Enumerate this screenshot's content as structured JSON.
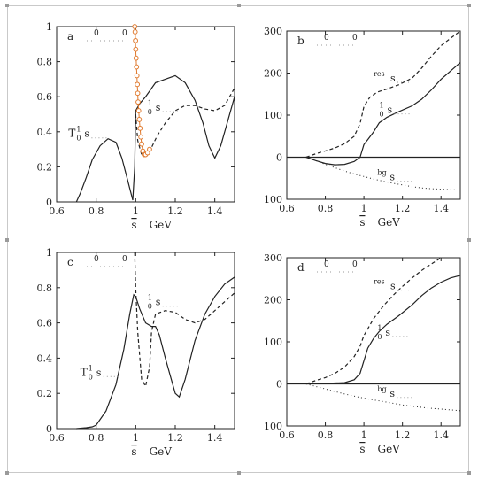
{
  "figure": {
    "corner_color": "#9a9a9a",
    "frame_color": "#c9c9c9"
  },
  "chart_data": [
    {
      "id": "a",
      "type": "line",
      "panel_letter": "a",
      "panel_labels": [
        "0",
        "0"
      ],
      "xlabel_sym": "s",
      "xlabel_unit": "GeV",
      "xlim": [
        0.6,
        1.5
      ],
      "ylim": [
        0,
        1
      ],
      "xticks": [
        0.6,
        0.8,
        1,
        1.2,
        1.4
      ],
      "xtick_labels": [
        "0.6",
        "0.8",
        "1",
        "1.2",
        "1.4"
      ],
      "yticks": [
        0,
        0.2,
        0.4,
        0.6,
        0.8,
        1
      ],
      "ytick_labels": [
        "0",
        "0.2",
        "0.4",
        "0.6",
        "0.8",
        "1"
      ],
      "zero_line": false,
      "curve_labels": [
        {
          "text": "T",
          "sup": "1",
          "sub": "0",
          "tail": "s",
          "x": 0.66,
          "y": 0.37
        },
        {
          "text": "",
          "sup": "1",
          "sub": "0",
          "tail": "s",
          "x": 1.06,
          "y": 0.52
        }
      ],
      "series": [
        {
          "style": "solid",
          "points": [
            [
              0.7,
              0
            ],
            [
              0.72,
              0.05
            ],
            [
              0.75,
              0.14
            ],
            [
              0.78,
              0.24
            ],
            [
              0.82,
              0.32
            ],
            [
              0.86,
              0.36
            ],
            [
              0.9,
              0.34
            ],
            [
              0.93,
              0.25
            ],
            [
              0.96,
              0.12
            ],
            [
              0.985,
              0.01
            ],
            [
              0.995,
              0.2
            ],
            [
              1.0,
              0.52
            ],
            [
              1.02,
              0.56
            ],
            [
              1.05,
              0.6
            ],
            [
              1.1,
              0.68
            ],
            [
              1.15,
              0.7
            ],
            [
              1.2,
              0.72
            ],
            [
              1.25,
              0.68
            ],
            [
              1.3,
              0.58
            ],
            [
              1.34,
              0.45
            ],
            [
              1.37,
              0.32
            ],
            [
              1.4,
              0.25
            ],
            [
              1.43,
              0.32
            ],
            [
              1.46,
              0.44
            ],
            [
              1.5,
              0.6
            ]
          ]
        },
        {
          "style": "dashed",
          "points": [
            [
              1.0,
              0.5
            ],
            [
              1.01,
              0.35
            ],
            [
              1.03,
              0.27
            ],
            [
              1.06,
              0.27
            ],
            [
              1.08,
              0.31
            ],
            [
              1.11,
              0.38
            ],
            [
              1.15,
              0.45
            ],
            [
              1.2,
              0.52
            ],
            [
              1.25,
              0.55
            ],
            [
              1.3,
              0.55
            ],
            [
              1.35,
              0.53
            ],
            [
              1.4,
              0.52
            ],
            [
              1.45,
              0.55
            ],
            [
              1.5,
              0.65
            ]
          ]
        },
        {
          "style": "markers",
          "color": "#e07a2e",
          "points": [
            [
              0.995,
              1
            ],
            [
              0.997,
              0.97
            ],
            [
              0.999,
              0.92
            ],
            [
              1.0,
              0.87
            ],
            [
              1.002,
              0.82
            ],
            [
              1.004,
              0.77
            ],
            [
              1.006,
              0.72
            ],
            [
              1.008,
              0.67
            ],
            [
              1.01,
              0.62
            ],
            [
              1.012,
              0.57
            ],
            [
              1.015,
              0.52
            ],
            [
              1.018,
              0.47
            ],
            [
              1.022,
              0.42
            ],
            [
              1.026,
              0.37
            ],
            [
              1.03,
              0.33
            ],
            [
              1.036,
              0.29
            ],
            [
              1.043,
              0.27
            ],
            [
              1.05,
              0.27
            ],
            [
              1.06,
              0.28
            ],
            [
              1.07,
              0.3
            ]
          ]
        }
      ]
    },
    {
      "id": "b",
      "type": "line",
      "panel_letter": "b",
      "panel_labels": [
        "0",
        "0"
      ],
      "xlabel_sym": "s",
      "xlabel_unit": "GeV",
      "xlim": [
        0.6,
        1.5
      ],
      "ylim": [
        -100,
        300
      ],
      "xticks": [
        0.6,
        0.8,
        1,
        1.2,
        1.4
      ],
      "xtick_labels": [
        "0.6",
        "0.8",
        "1",
        "1.2",
        "1.4"
      ],
      "yticks": [
        -100,
        0,
        100,
        200,
        300
      ],
      "ytick_labels": [
        "100",
        "0",
        "100",
        "200",
        "300"
      ],
      "zero_line": true,
      "curve_labels": [
        {
          "text": "",
          "sup": "res",
          "sub": "",
          "tail": "s",
          "x": 1.05,
          "y": 180
        },
        {
          "text": "",
          "sup": "1",
          "sub": "0",
          "tail": "s",
          "x": 1.08,
          "y": 105
        },
        {
          "text": "",
          "sup": "bg",
          "sub": "",
          "tail": "s",
          "x": 1.07,
          "y": -55
        }
      ],
      "series": [
        {
          "style": "solid",
          "points": [
            [
              0.7,
              0
            ],
            [
              0.75,
              -8
            ],
            [
              0.8,
              -15
            ],
            [
              0.85,
              -18
            ],
            [
              0.9,
              -17
            ],
            [
              0.95,
              -10
            ],
            [
              0.98,
              0
            ],
            [
              1.0,
              30
            ],
            [
              1.02,
              42
            ],
            [
              1.05,
              60
            ],
            [
              1.08,
              82
            ],
            [
              1.12,
              95
            ],
            [
              1.18,
              108
            ],
            [
              1.25,
              122
            ],
            [
              1.3,
              138
            ],
            [
              1.35,
              160
            ],
            [
              1.4,
              185
            ],
            [
              1.45,
              205
            ],
            [
              1.5,
              225
            ]
          ]
        },
        {
          "style": "dashed",
          "points": [
            [
              0.7,
              0
            ],
            [
              0.75,
              8
            ],
            [
              0.8,
              15
            ],
            [
              0.85,
              22
            ],
            [
              0.9,
              32
            ],
            [
              0.95,
              50
            ],
            [
              0.98,
              80
            ],
            [
              1.0,
              120
            ],
            [
              1.03,
              142
            ],
            [
              1.07,
              155
            ],
            [
              1.12,
              162
            ],
            [
              1.18,
              172
            ],
            [
              1.25,
              188
            ],
            [
              1.3,
              212
            ],
            [
              1.35,
              240
            ],
            [
              1.4,
              265
            ],
            [
              1.45,
              283
            ],
            [
              1.5,
              300
            ]
          ]
        },
        {
          "style": "dotted",
          "points": [
            [
              0.7,
              0
            ],
            [
              0.75,
              -8
            ],
            [
              0.8,
              -17
            ],
            [
              0.85,
              -25
            ],
            [
              0.9,
              -33
            ],
            [
              0.95,
              -40
            ],
            [
              1.0,
              -46
            ],
            [
              1.05,
              -52
            ],
            [
              1.1,
              -57
            ],
            [
              1.15,
              -62
            ],
            [
              1.2,
              -66
            ],
            [
              1.25,
              -70
            ],
            [
              1.3,
              -73
            ],
            [
              1.35,
              -75
            ],
            [
              1.4,
              -76
            ],
            [
              1.45,
              -77
            ],
            [
              1.5,
              -78
            ]
          ]
        }
      ]
    },
    {
      "id": "c",
      "type": "line",
      "panel_letter": "c",
      "panel_labels": [
        "0",
        "0"
      ],
      "xlabel_sym": "s",
      "xlabel_unit": "GeV",
      "xlim": [
        0.6,
        1.5
      ],
      "ylim": [
        0,
        1
      ],
      "xticks": [
        0.6,
        0.8,
        1,
        1.2,
        1.4
      ],
      "xtick_labels": [
        "0.6",
        "0.8",
        "1",
        "1.2",
        "1.4"
      ],
      "yticks": [
        0,
        0.2,
        0.4,
        0.6,
        0.8,
        1
      ],
      "ytick_labels": [
        "0",
        "0.2",
        "0.4",
        "0.6",
        "0.8",
        "1"
      ],
      "zero_line": false,
      "curve_labels": [
        {
          "text": "T",
          "sup": "1",
          "sub": "0",
          "tail": "s",
          "x": 0.72,
          "y": 0.3
        },
        {
          "text": "",
          "sup": "1",
          "sub": "0",
          "tail": "s",
          "x": 1.06,
          "y": 0.7
        }
      ],
      "series": [
        {
          "style": "solid",
          "points": [
            [
              0.7,
              0
            ],
            [
              0.75,
              0.005
            ],
            [
              0.78,
              0.01
            ],
            [
              0.8,
              0.02
            ],
            [
              0.85,
              0.1
            ],
            [
              0.9,
              0.25
            ],
            [
              0.94,
              0.45
            ],
            [
              0.97,
              0.65
            ],
            [
              0.99,
              0.76
            ],
            [
              1.0,
              0.75
            ],
            [
              1.02,
              0.68
            ],
            [
              1.05,
              0.6
            ],
            [
              1.08,
              0.58
            ],
            [
              1.1,
              0.58
            ],
            [
              1.12,
              0.53
            ],
            [
              1.15,
              0.4
            ],
            [
              1.18,
              0.28
            ],
            [
              1.2,
              0.2
            ],
            [
              1.22,
              0.18
            ],
            [
              1.25,
              0.28
            ],
            [
              1.3,
              0.5
            ],
            [
              1.35,
              0.65
            ],
            [
              1.4,
              0.75
            ],
            [
              1.45,
              0.82
            ],
            [
              1.5,
              0.86
            ]
          ]
        },
        {
          "style": "dashed",
          "points": [
            [
              0.995,
              1
            ],
            [
              1.0,
              0.8
            ],
            [
              1.01,
              0.55
            ],
            [
              1.03,
              0.28
            ],
            [
              1.05,
              0.24
            ],
            [
              1.07,
              0.35
            ],
            [
              1.08,
              0.55
            ],
            [
              1.1,
              0.65
            ],
            [
              1.15,
              0.67
            ],
            [
              1.2,
              0.66
            ],
            [
              1.25,
              0.62
            ],
            [
              1.3,
              0.6
            ],
            [
              1.35,
              0.62
            ],
            [
              1.4,
              0.67
            ],
            [
              1.45,
              0.72
            ],
            [
              1.5,
              0.77
            ]
          ]
        }
      ]
    },
    {
      "id": "d",
      "type": "line",
      "panel_letter": "d",
      "panel_labels": [
        "0",
        "0"
      ],
      "xlabel_sym": "s",
      "xlabel_unit": "GeV",
      "xlim": [
        0.6,
        1.5
      ],
      "ylim": [
        -100,
        300
      ],
      "xticks": [
        0.6,
        0.8,
        1,
        1.2,
        1.4
      ],
      "xtick_labels": [
        "0.6",
        "0.8",
        "1",
        "1.2",
        "1.4"
      ],
      "yticks": [
        -100,
        0,
        100,
        200,
        300
      ],
      "ytick_labels": [
        "100",
        "0",
        "100",
        "200",
        "300"
      ],
      "zero_line": true,
      "curve_labels": [
        {
          "text": "",
          "sup": "res",
          "sub": "",
          "tail": "s",
          "x": 1.05,
          "y": 225
        },
        {
          "text": "",
          "sup": "1",
          "sub": "0",
          "tail": "s",
          "x": 1.07,
          "y": 115
        },
        {
          "text": "",
          "sup": "bg",
          "sub": "",
          "tail": "s",
          "x": 1.07,
          "y": -30
        }
      ],
      "series": [
        {
          "style": "solid",
          "points": [
            [
              0.7,
              0
            ],
            [
              0.8,
              1
            ],
            [
              0.9,
              3
            ],
            [
              0.95,
              10
            ],
            [
              0.98,
              25
            ],
            [
              1.0,
              55
            ],
            [
              1.02,
              85
            ],
            [
              1.05,
              108
            ],
            [
              1.08,
              125
            ],
            [
              1.12,
              142
            ],
            [
              1.18,
              162
            ],
            [
              1.25,
              188
            ],
            [
              1.3,
              210
            ],
            [
              1.35,
              228
            ],
            [
              1.4,
              242
            ],
            [
              1.45,
              252
            ],
            [
              1.5,
              258
            ]
          ]
        },
        {
          "style": "dashed",
          "points": [
            [
              0.7,
              0
            ],
            [
              0.75,
              8
            ],
            [
              0.8,
              15
            ],
            [
              0.85,
              25
            ],
            [
              0.9,
              40
            ],
            [
              0.95,
              65
            ],
            [
              0.98,
              90
            ],
            [
              1.0,
              115
            ],
            [
              1.05,
              155
            ],
            [
              1.1,
              185
            ],
            [
              1.15,
              210
            ],
            [
              1.2,
              232
            ],
            [
              1.25,
              252
            ],
            [
              1.3,
              270
            ],
            [
              1.35,
              285
            ],
            [
              1.4,
              300
            ]
          ]
        },
        {
          "style": "dotted",
          "points": [
            [
              0.7,
              0
            ],
            [
              0.75,
              -6
            ],
            [
              0.8,
              -12
            ],
            [
              0.85,
              -18
            ],
            [
              0.9,
              -24
            ],
            [
              0.95,
              -29
            ],
            [
              1.0,
              -34
            ],
            [
              1.05,
              -38
            ],
            [
              1.1,
              -42
            ],
            [
              1.15,
              -46
            ],
            [
              1.2,
              -50
            ],
            [
              1.25,
              -53
            ],
            [
              1.3,
              -56
            ],
            [
              1.35,
              -58
            ],
            [
              1.4,
              -60
            ],
            [
              1.45,
              -62
            ],
            [
              1.5,
              -64
            ]
          ]
        }
      ]
    }
  ]
}
